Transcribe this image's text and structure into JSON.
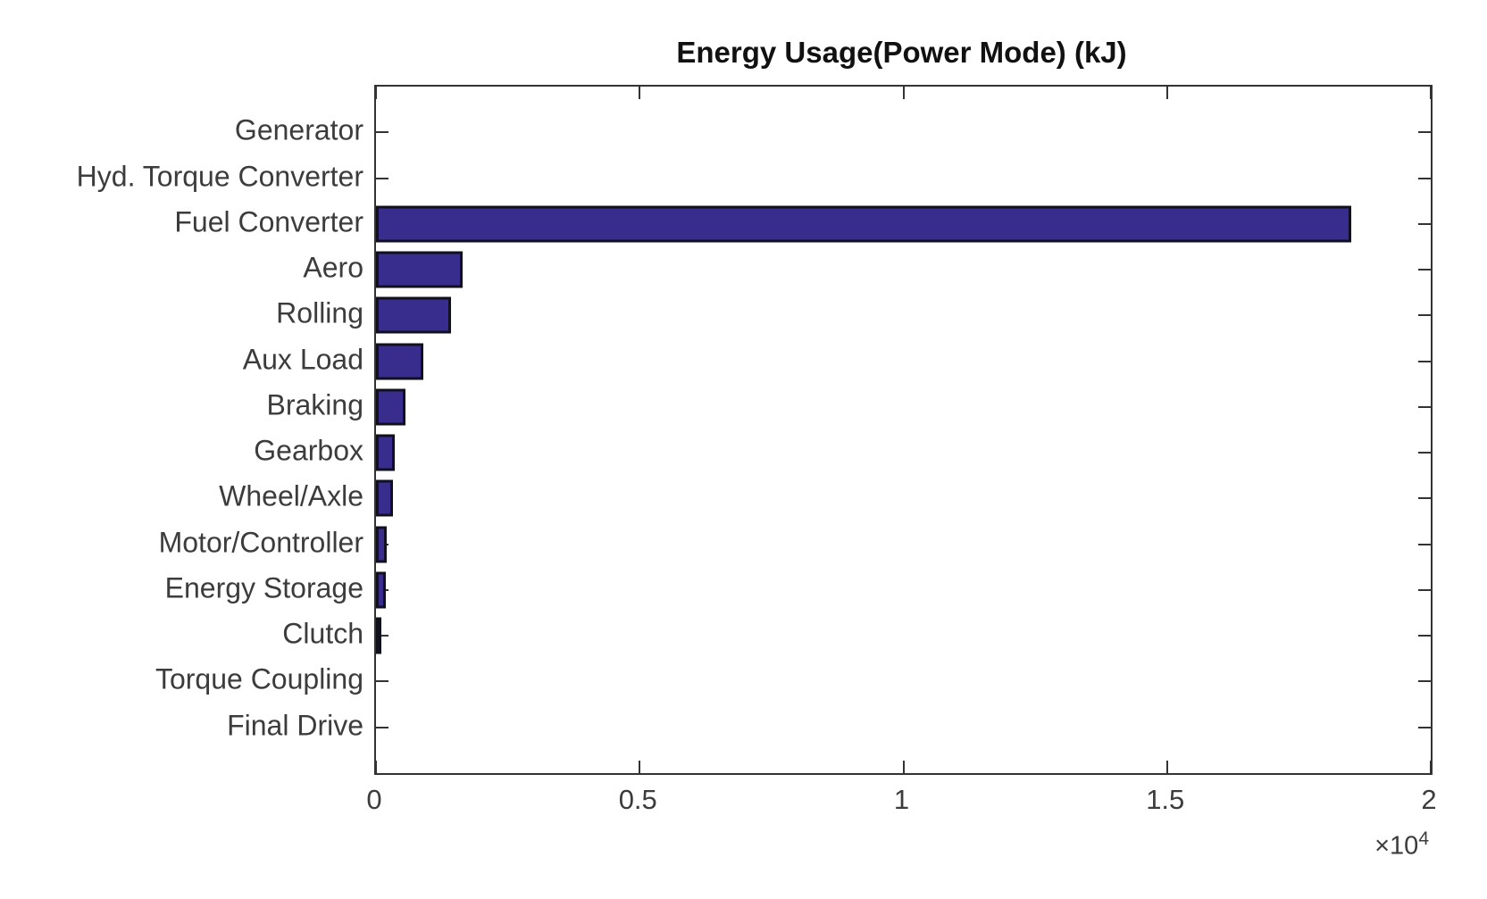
{
  "chart_data": {
    "type": "bar",
    "orientation": "horizontal",
    "title": "Energy Usage(Power Mode) (kJ)",
    "categories": [
      "Generator",
      "Hyd. Torque Converter",
      "Fuel Converter",
      "Aero",
      "Rolling",
      "Aux Load",
      "Braking",
      "Gearbox",
      "Wheel/Axle",
      "Motor/Controller",
      "Energy Storage",
      "Clutch",
      "Torque Coupling",
      "Final Drive"
    ],
    "values": [
      0,
      0,
      18500,
      1650,
      1420,
      900,
      560,
      360,
      330,
      210,
      190,
      70,
      0,
      0
    ],
    "xlabel": "",
    "ylabel": "",
    "xlim": [
      0,
      20000
    ],
    "x_tick_values": [
      0,
      5000,
      10000,
      15000,
      20000
    ],
    "x_tick_labels": [
      "0",
      "0.5",
      "1",
      "1.5",
      "2"
    ],
    "x_multiplier": {
      "base": "×10",
      "exponent": "4"
    },
    "grid": false,
    "legend": "none",
    "box": true,
    "tick_direction": "in",
    "colors": {
      "bar_fill": "#382D8D",
      "bar_edge": "#10101E",
      "axis": "#333333",
      "tick_text": "#3C3C3C",
      "title_text": "#111111",
      "background": "#FFFFFF"
    }
  }
}
